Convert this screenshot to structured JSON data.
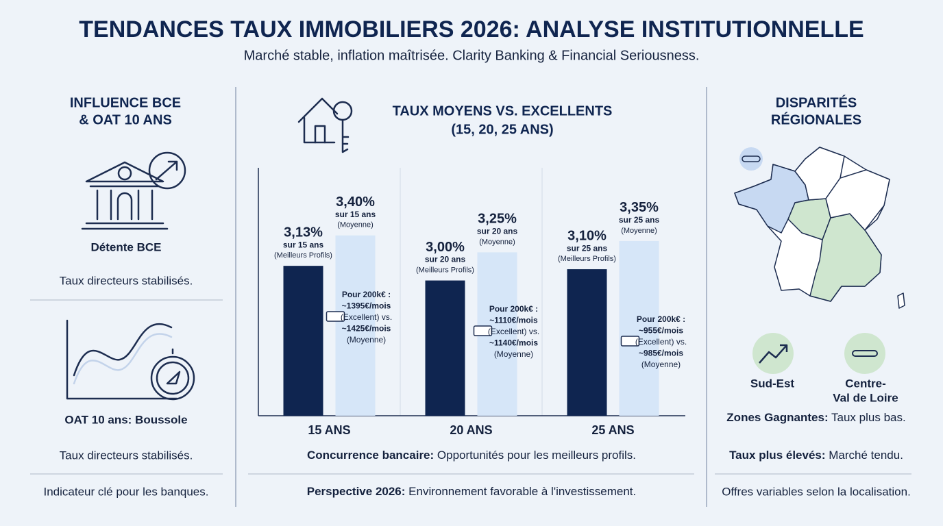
{
  "header": {
    "title": "TENDANCES TAUX IMMOBILIERS 2026: ANALYSE INSTITUTIONNELLE",
    "subtitle": "Marché stable, inflation maîtrisée. Clarity Banking & Financial Seriousness."
  },
  "left": {
    "title_lines": [
      "INFLUENCE BCE",
      "& OAT 10 ANS"
    ],
    "item1": {
      "label": "Détente BCE",
      "text": "Taux directeurs stabilisés."
    },
    "item2": {
      "label": "OAT 10 ans: Boussole",
      "text": "Taux directeurs stabilisés."
    },
    "footer": "Indicateur clé pour les banques."
  },
  "chart_data": {
    "type": "bar",
    "title_lines": [
      "TAUX MOYENS VS. EXCELLENTS",
      "(15, 20, 25 ANS)"
    ],
    "categories": [
      "15 ANS",
      "20 ANS",
      "25 ANS"
    ],
    "series": [
      {
        "name": "(Meilleurs Profils)",
        "color": "#0f2550",
        "values": [
          3.13,
          3.0,
          3.1
        ],
        "value_labels": [
          "3,13%",
          "3,00%",
          "3,10%"
        ],
        "notes": [
          "sur 15 ans",
          "sur 20 ans",
          "sur 25 ans"
        ]
      },
      {
        "name": "(Moyenne)",
        "color": "#d6e6f8",
        "values": [
          3.4,
          3.25,
          3.35
        ],
        "value_labels": [
          "3,40%",
          "3,25%",
          "3,35%"
        ],
        "notes": [
          "sur 15 ans",
          "sur 20 ans",
          "sur 25 ans"
        ]
      }
    ],
    "payments": [
      [
        "Pour 200k€ :",
        "~1395€/mois",
        "(Excellent) vs.",
        "~1425€/mois",
        "(Moyenne)"
      ],
      [
        "Pour 200k€ :",
        "~1110€/mois",
        "(Excellent) vs.",
        "~1140€/mois",
        "(Moyenne)"
      ],
      [
        "Pour 200k€ :",
        "~955€/mois",
        "(Excellent) vs.",
        "~985€/mois",
        "(Moyenne)"
      ]
    ],
    "ylim": [
      1.8,
      4.0
    ],
    "grid": false,
    "notes": [
      {
        "bold": "Concurrence bancaire:",
        "text": " Opportunités pour les meilleurs profils."
      },
      {
        "bold": "Perspective 2026:",
        "text": " Environnement favorable à l'investissement."
      }
    ]
  },
  "right": {
    "title_lines": [
      "DISPARITÉS",
      "RÉGIONALES"
    ],
    "zone1": "Sud-Est",
    "zone2_lines": [
      "Centre-",
      "Val de Loire"
    ],
    "notes": [
      {
        "bold": "Zones Gagnantes:",
        "text": " Taux plus bas."
      },
      {
        "bold": "Taux plus élevés:",
        "text": " Marché tendu."
      }
    ],
    "footer": "Offres variables selon la localisation."
  }
}
